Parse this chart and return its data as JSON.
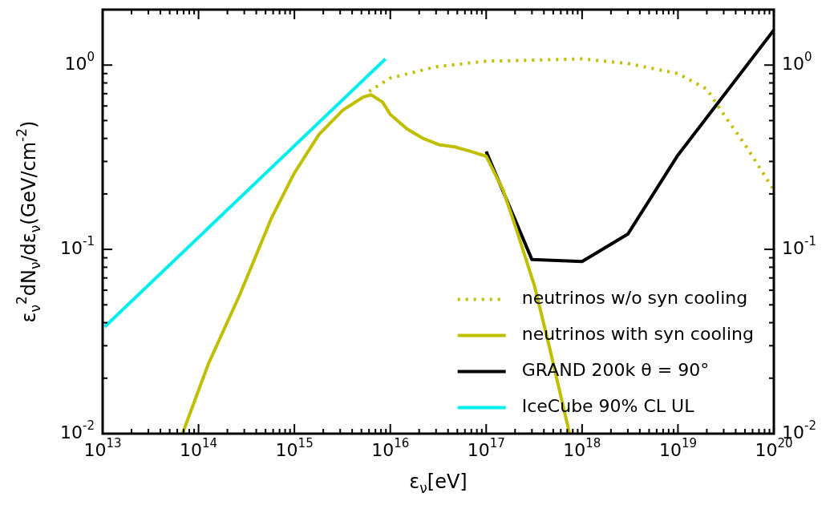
{
  "chart_data": {
    "type": "line",
    "xlabel": "ε$_{ν}$[eV]",
    "ylabel": "ε$_{ν}$$^{2}$dN$_{ν}$/dε$_{ν}$(GeV/cm$^{-2}$)",
    "log": "xy",
    "grid": false,
    "legend": "bottom right",
    "xlim": [
      10000000000000.0,
      1e+20
    ],
    "ylim": [
      0.01,
      2
    ],
    "xticks": [
      {
        "value": 10000000000000.0,
        "label": "10$^{13}$"
      },
      {
        "value": 20000000000000.0,
        "label": null
      },
      {
        "value": 30000000000000.0,
        "label": null
      },
      {
        "value": 40000000000000.0,
        "label": null
      },
      {
        "value": 50000000000000.0,
        "label": null
      },
      {
        "value": 60000000000000.0,
        "label": null
      },
      {
        "value": 70000000000000.0,
        "label": null
      },
      {
        "value": 80000000000000.0,
        "label": null
      },
      {
        "value": 90000000000000.0,
        "label": null
      },
      {
        "value": 100000000000000.0,
        "label": "10$^{14}$"
      },
      {
        "value": 200000000000000.0,
        "label": null
      },
      {
        "value": 300000000000000.0,
        "label": null
      },
      {
        "value": 400000000000000.0,
        "label": null
      },
      {
        "value": 500000000000000.0,
        "label": null
      },
      {
        "value": 600000000000000.0,
        "label": null
      },
      {
        "value": 700000000000000.0,
        "label": null
      },
      {
        "value": 800000000000000.0,
        "label": null
      },
      {
        "value": 900000000000000.0,
        "label": null
      },
      {
        "value": 1000000000000000.0,
        "label": "10$^{15}$"
      },
      {
        "value": 2000000000000000.0,
        "label": null
      },
      {
        "value": 3000000000000000.0,
        "label": null
      },
      {
        "value": 4000000000000000.0,
        "label": null
      },
      {
        "value": 5000000000000000.0,
        "label": null
      },
      {
        "value": 6000000000000000.0,
        "label": null
      },
      {
        "value": 7000000000000000.0,
        "label": null
      },
      {
        "value": 8000000000000000.0,
        "label": null
      },
      {
        "value": 9000000000000000.0,
        "label": null
      },
      {
        "value": 1e+16,
        "label": "10$^{16}$"
      },
      {
        "value": 2e+16,
        "label": null
      },
      {
        "value": 3e+16,
        "label": null
      },
      {
        "value": 4e+16,
        "label": null
      },
      {
        "value": 5e+16,
        "label": null
      },
      {
        "value": 6e+16,
        "label": null
      },
      {
        "value": 7e+16,
        "label": null
      },
      {
        "value": 8e+16,
        "label": null
      },
      {
        "value": 9e+16,
        "label": null
      },
      {
        "value": 1e+17,
        "label": "10$^{17}$"
      },
      {
        "value": 2e+17,
        "label": null
      },
      {
        "value": 3e+17,
        "label": null
      },
      {
        "value": 4e+17,
        "label": null
      },
      {
        "value": 5e+17,
        "label": null
      },
      {
        "value": 6e+17,
        "label": null
      },
      {
        "value": 7e+17,
        "label": null
      },
      {
        "value": 8e+17,
        "label": null
      },
      {
        "value": 9e+17,
        "label": null
      },
      {
        "value": 1e+18,
        "label": "10$^{18}$"
      },
      {
        "value": 2e+18,
        "label": null
      },
      {
        "value": 3e+18,
        "label": null
      },
      {
        "value": 4e+18,
        "label": null
      },
      {
        "value": 5e+18,
        "label": null
      },
      {
        "value": 6e+18,
        "label": null
      },
      {
        "value": 7e+18,
        "label": null
      },
      {
        "value": 8e+18,
        "label": null
      },
      {
        "value": 9e+18,
        "label": null
      },
      {
        "value": 1e+19,
        "label": "10$^{19}$"
      },
      {
        "value": 2e+19,
        "label": null
      },
      {
        "value": 3e+19,
        "label": null
      },
      {
        "value": 4e+19,
        "label": null
      },
      {
        "value": 5e+19,
        "label": null
      },
      {
        "value": 6e+19,
        "label": null
      },
      {
        "value": 7e+19,
        "label": null
      },
      {
        "value": 8e+19,
        "label": null
      },
      {
        "value": 9e+19,
        "label": null
      },
      {
        "value": 1e+20,
        "label": "10$^{20}$"
      }
    ],
    "yticks": [
      {
        "value": 0.01,
        "label": "10$^{-2}$"
      },
      {
        "value": 0.02,
        "label": null
      },
      {
        "value": 0.03,
        "label": null
      },
      {
        "value": 0.04,
        "label": null
      },
      {
        "value": 0.05,
        "label": null
      },
      {
        "value": 0.06,
        "label": null
      },
      {
        "value": 0.07,
        "label": null
      },
      {
        "value": 0.08,
        "label": null
      },
      {
        "value": 0.09,
        "label": null
      },
      {
        "value": 0.1,
        "label": "10$^{-1}$"
      },
      {
        "value": 0.2,
        "label": null
      },
      {
        "value": 0.3,
        "label": null
      },
      {
        "value": 0.4,
        "label": null
      },
      {
        "value": 0.5,
        "label": null
      },
      {
        "value": 0.6,
        "label": null
      },
      {
        "value": 0.7,
        "label": null
      },
      {
        "value": 0.8,
        "label": null
      },
      {
        "value": 0.9,
        "label": null
      },
      {
        "value": 1,
        "label": "10$^{0}$"
      },
      {
        "value": 2,
        "label": null
      }
    ],
    "series": [
      {
        "name": "neutrinos w/o syn cooling",
        "color": "#bfbf00",
        "line_style": "dotted",
        "x": [
          6000000000000000.0,
          1e+16,
          3e+16,
          1e+17,
          1e+18,
          3e+18,
          1e+19,
          2e+19,
          3e+19,
          5e+19,
          1e+20
        ],
        "values": [
          0.72,
          0.85,
          0.98,
          1.05,
          1.08,
          1.02,
          0.9,
          0.74,
          0.54,
          0.37,
          0.21
        ]
      },
      {
        "name": "neutrinos with syn cooling",
        "color": "#bfbf00",
        "line_style": "solid",
        "x": [
          68000000000000.0,
          127000000000000.0,
          270000000000000.0,
          580000000000000.0,
          1000000000000000.0,
          1800000000000000.0,
          3200000000000000.0,
          5200000000000000.0,
          6300000000000000.0,
          8300000000000000.0,
          1e+16,
          1.5e+16,
          2.2e+16,
          3.2e+16,
          4.7e+16,
          6.9e+16,
          1e+17,
          1.5e+17,
          2.1e+17,
          3.2e+17,
          4.6e+17,
          7.4e+17
        ],
        "values": [
          0.01,
          0.024,
          0.057,
          0.149,
          0.26,
          0.42,
          0.57,
          0.67,
          0.69,
          0.63,
          0.54,
          0.45,
          0.4,
          0.37,
          0.36,
          0.34,
          0.32,
          0.21,
          0.125,
          0.063,
          0.029,
          0.01
        ]
      },
      {
        "name": "GRAND 200k θ = 90°",
        "color": "#000000",
        "line_style": "solid",
        "x": [
          1e+17,
          3e+17,
          1e+18,
          3e+18,
          1e+19,
          1e+20
        ],
        "values": [
          0.34,
          0.088,
          0.086,
          0.121,
          0.325,
          1.55
        ]
      },
      {
        "name": "IceCube 90% CL UL",
        "color": "#00eeee",
        "line_style": "solid",
        "x": [
          10500000000000.0,
          8900000000000000.0
        ],
        "values": [
          0.038,
          1.08
        ]
      }
    ]
  }
}
